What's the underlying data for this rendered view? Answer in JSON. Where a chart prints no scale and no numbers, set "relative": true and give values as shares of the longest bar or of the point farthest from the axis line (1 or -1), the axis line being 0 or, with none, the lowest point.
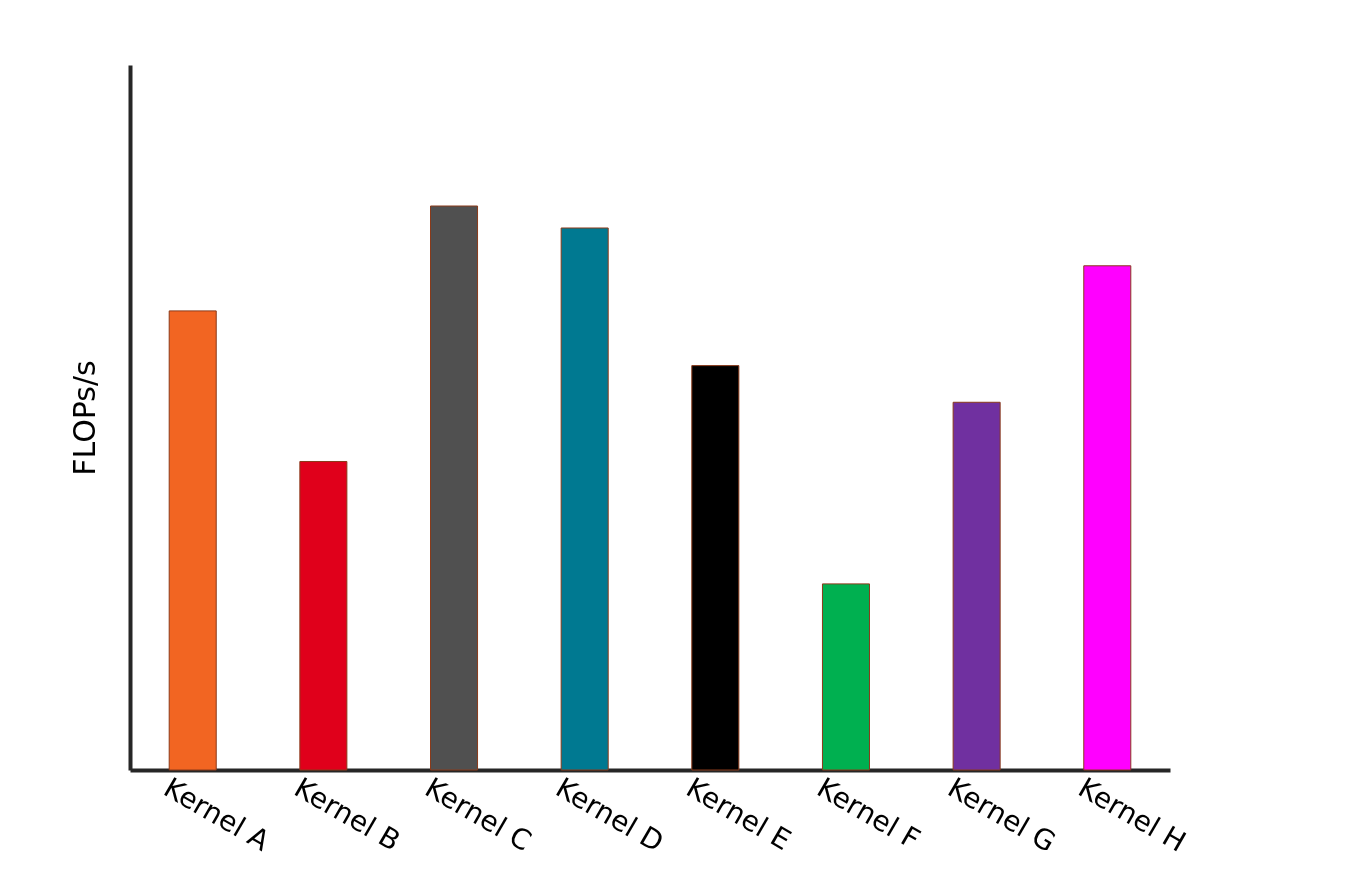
{
  "chart_data": {
    "type": "bar",
    "ylabel": "FLOPs/s",
    "relative": true,
    "categories": [
      "Kernel A",
      "Kernel B",
      "Kernel C",
      "Kernel D",
      "Kernel E",
      "Kernel F",
      "Kernel G",
      "Kernel H"
    ],
    "values": [
      0.814,
      0.547,
      1,
      0.961,
      0.717,
      0.33,
      0.652,
      0.894
    ],
    "colors": [
      "#f26522",
      "#e0001b",
      "#505050",
      "#007991",
      "#000000",
      "#00b050",
      "#7030a0",
      "#ff00ff"
    ],
    "stacked": false
  }
}
